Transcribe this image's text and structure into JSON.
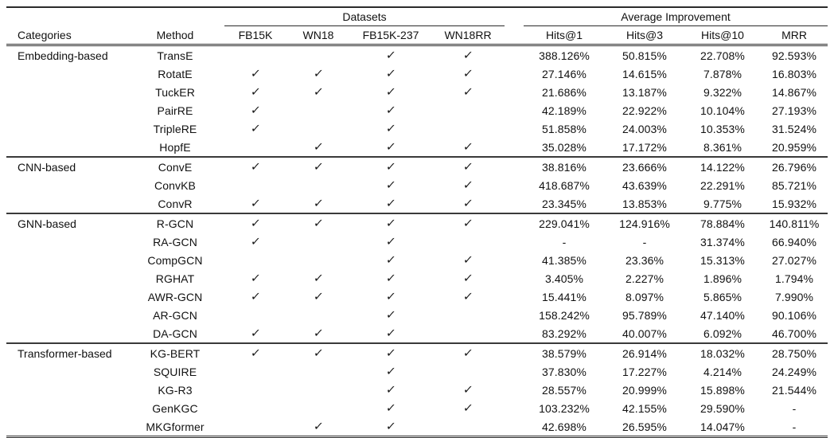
{
  "table": {
    "group_header": {
      "datasets_label": "Datasets",
      "improvement_label": "Average Improvement"
    },
    "column_headers": {
      "categories": "Categories",
      "method": "Method",
      "datasets": [
        "FB15K",
        "WN18",
        "FB15K-237",
        "WN18RR"
      ],
      "metrics": [
        "Hits@1",
        "Hits@3",
        "Hits@10",
        "MRR"
      ]
    },
    "checkmark_glyph": "✓",
    "missing_value_glyph": "-",
    "sections": [
      {
        "category": "Embedding-based",
        "rows": [
          {
            "method": "TransE",
            "datasets": [
              false,
              false,
              true,
              true
            ],
            "metrics": [
              "388.126%",
              "50.815%",
              "22.708%",
              "92.593%"
            ]
          },
          {
            "method": "RotatE",
            "datasets": [
              true,
              true,
              true,
              true
            ],
            "metrics": [
              "27.146%",
              "14.615%",
              "7.878%",
              "16.803%"
            ]
          },
          {
            "method": "TuckER",
            "datasets": [
              true,
              true,
              true,
              true
            ],
            "metrics": [
              "21.686%",
              "13.187%",
              "9.322%",
              "14.867%"
            ]
          },
          {
            "method": "PairRE",
            "datasets": [
              true,
              false,
              true,
              false
            ],
            "metrics": [
              "42.189%",
              "22.922%",
              "10.104%",
              "27.193%"
            ]
          },
          {
            "method": "TripleRE",
            "datasets": [
              true,
              false,
              true,
              false
            ],
            "metrics": [
              "51.858%",
              "24.003%",
              "10.353%",
              "31.524%"
            ]
          },
          {
            "method": "HopfE",
            "datasets": [
              false,
              true,
              true,
              true
            ],
            "metrics": [
              "35.028%",
              "17.172%",
              "8.361%",
              "20.959%"
            ]
          }
        ]
      },
      {
        "category": "CNN-based",
        "rows": [
          {
            "method": "ConvE",
            "datasets": [
              true,
              true,
              true,
              true
            ],
            "metrics": [
              "38.816%",
              "23.666%",
              "14.122%",
              "26.796%"
            ]
          },
          {
            "method": "ConvKB",
            "datasets": [
              false,
              false,
              true,
              true
            ],
            "metrics": [
              "418.687%",
              "43.639%",
              "22.291%",
              "85.721%"
            ]
          },
          {
            "method": "ConvR",
            "datasets": [
              true,
              true,
              true,
              true
            ],
            "metrics": [
              "23.345%",
              "13.853%",
              "9.775%",
              "15.932%"
            ]
          }
        ]
      },
      {
        "category": "GNN-based",
        "rows": [
          {
            "method": "R-GCN",
            "datasets": [
              true,
              true,
              true,
              true
            ],
            "metrics": [
              "229.041%",
              "124.916%",
              "78.884%",
              "140.811%"
            ]
          },
          {
            "method": "RA-GCN",
            "datasets": [
              true,
              false,
              true,
              false
            ],
            "metrics": [
              "-",
              "-",
              "31.374%",
              "66.940%"
            ]
          },
          {
            "method": "CompGCN",
            "datasets": [
              false,
              false,
              true,
              true
            ],
            "metrics": [
              "41.385%",
              "23.36%",
              "15.313%",
              "27.027%"
            ]
          },
          {
            "method": "RGHAT",
            "datasets": [
              true,
              true,
              true,
              true
            ],
            "metrics": [
              "3.405%",
              "2.227%",
              "1.896%",
              "1.794%"
            ]
          },
          {
            "method": "AWR-GCN",
            "datasets": [
              true,
              true,
              true,
              true
            ],
            "metrics": [
              "15.441%",
              "8.097%",
              "5.865%",
              "7.990%"
            ]
          },
          {
            "method": "AR-GCN",
            "datasets": [
              false,
              false,
              true,
              false
            ],
            "metrics": [
              "158.242%",
              "95.789%",
              "47.140%",
              "90.106%"
            ]
          },
          {
            "method": "DA-GCN",
            "datasets": [
              true,
              true,
              true,
              false
            ],
            "metrics": [
              "83.292%",
              "40.007%",
              "6.092%",
              "46.700%"
            ]
          }
        ]
      },
      {
        "category": "Transformer-based",
        "rows": [
          {
            "method": "KG-BERT",
            "datasets": [
              true,
              true,
              true,
              true
            ],
            "metrics": [
              "38.579%",
              "26.914%",
              "18.032%",
              "28.750%"
            ]
          },
          {
            "method": "SQUIRE",
            "datasets": [
              false,
              false,
              true,
              false
            ],
            "metrics": [
              "37.830%",
              "17.227%",
              "4.214%",
              "24.249%"
            ]
          },
          {
            "method": "KG-R3",
            "datasets": [
              false,
              false,
              true,
              true
            ],
            "metrics": [
              "28.557%",
              "20.999%",
              "15.898%",
              "21.544%"
            ]
          },
          {
            "method": "GenKGC",
            "datasets": [
              false,
              false,
              true,
              true
            ],
            "metrics": [
              "103.232%",
              "42.155%",
              "29.590%",
              "-"
            ]
          },
          {
            "method": "MKGformer",
            "datasets": [
              false,
              true,
              true,
              false
            ],
            "metrics": [
              "42.698%",
              "26.595%",
              "14.047%",
              "-"
            ]
          }
        ]
      }
    ]
  }
}
